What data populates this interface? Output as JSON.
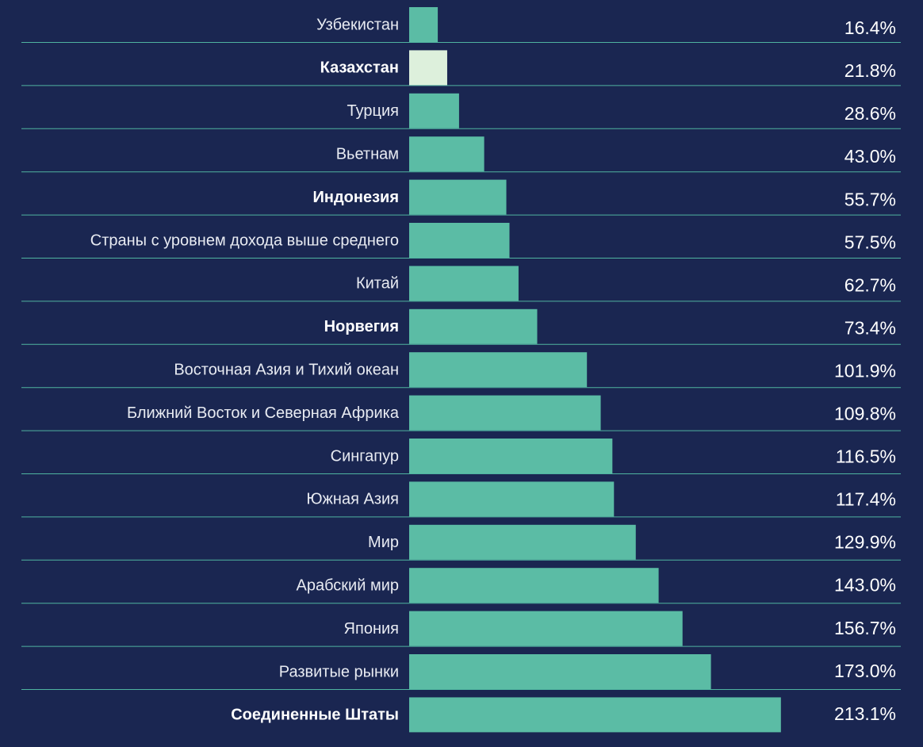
{
  "chart_data": {
    "type": "bar",
    "orientation": "horizontal",
    "categories": [
      "Узбекистан",
      "Казахстан",
      "Турция",
      "Вьетнам",
      "Индонезия",
      "Страны с уровнем дохода выше среднего",
      "Китай",
      "Норвегия",
      "Восточная Азия и Тихий океан",
      "Ближний Восток и Северная Африка",
      "Сингапур",
      "Южная Азия",
      "Мир",
      "Арабский мир",
      "Япония",
      "Развитые рынки",
      "Соединенные Штаты"
    ],
    "values": [
      16.4,
      21.8,
      28.6,
      43.0,
      55.7,
      57.5,
      62.7,
      73.4,
      101.9,
      109.8,
      116.5,
      117.4,
      129.9,
      143.0,
      156.7,
      173.0,
      213.1
    ],
    "value_labels": [
      "16.4%",
      "21.8%",
      "28.6%",
      "43.0%",
      "55.7%",
      "57.5%",
      "62.7%",
      "73.4%",
      "101.9%",
      "109.8%",
      "116.5%",
      "117.4%",
      "129.9%",
      "143.0%",
      "156.7%",
      "173.0%",
      "213.1%"
    ],
    "colors": [
      "#5bbca5",
      "#ddf0dc",
      "#5bbca5",
      "#5bbca5",
      "#5bbca5",
      "#5bbca5",
      "#5bbca5",
      "#5bbca5",
      "#5bbca5",
      "#5bbca5",
      "#5bbca5",
      "#5bbca5",
      "#5bbca5",
      "#5bbca5",
      "#5bbca5",
      "#5bbca5",
      "#5bbca5"
    ],
    "bold_categories": [
      false,
      true,
      false,
      false,
      true,
      false,
      false,
      true,
      false,
      false,
      false,
      false,
      false,
      false,
      false,
      false,
      true
    ],
    "xlim": [
      0,
      240
    ]
  }
}
